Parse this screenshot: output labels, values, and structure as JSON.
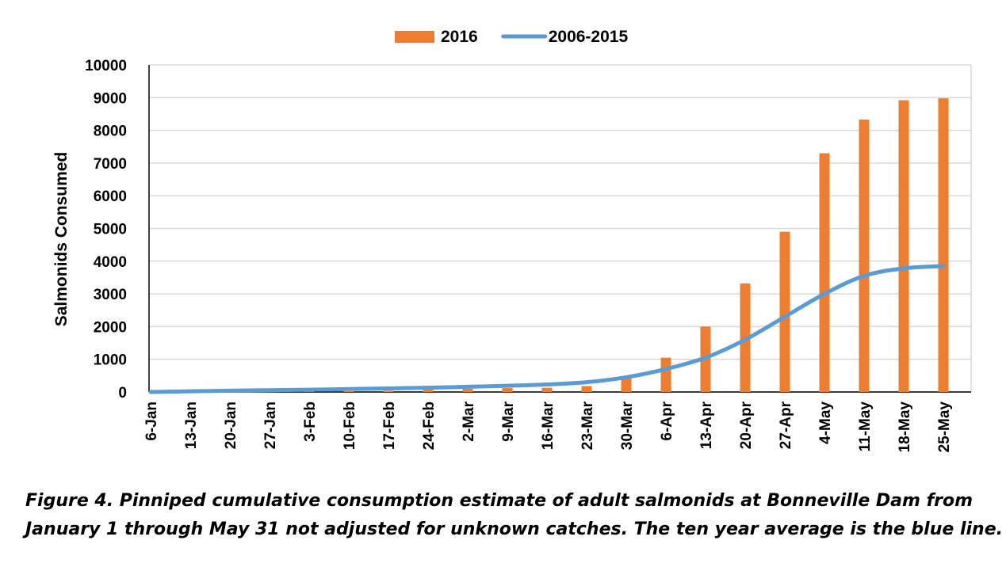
{
  "chart_data": {
    "type": "bar_line",
    "y_label": "Salmonids Consumed",
    "categories": [
      "6-Jan",
      "13-Jan",
      "20-Jan",
      "27-Jan",
      "3-Feb",
      "10-Feb",
      "17-Feb",
      "24-Feb",
      "2-Mar",
      "9-Mar",
      "16-Mar",
      "23-Mar",
      "30-Mar",
      "6-Apr",
      "13-Apr",
      "20-Apr",
      "27-Apr",
      "4-May",
      "11-May",
      "18-May",
      "25-May"
    ],
    "series": [
      {
        "name": "2016",
        "type": "bar",
        "color": "#ed7d31",
        "values": [
          0,
          0,
          0,
          5,
          10,
          20,
          40,
          70,
          100,
          120,
          130,
          180,
          420,
          1050,
          2000,
          3320,
          4900,
          7300,
          8330,
          8920,
          8980
        ]
      },
      {
        "name": "2006-2015",
        "type": "line",
        "color": "#5b9bd5",
        "values": [
          0,
          20,
          40,
          55,
          70,
          90,
          110,
          130,
          160,
          190,
          230,
          300,
          450,
          700,
          1050,
          1600,
          2300,
          3000,
          3550,
          3780,
          3850
        ]
      }
    ],
    "ylim": [
      0,
      10000
    ],
    "yticks": [
      0,
      1000,
      2000,
      3000,
      4000,
      5000,
      6000,
      7000,
      8000,
      9000,
      10000
    ],
    "grid": true,
    "legend": "top",
    "caption": [
      "Figure 4.  Pinniped cumulative consumption estimate of adult salmonids at Bonneville Dam from",
      "January 1 through May 31 not adjusted for unknown catches.  The ten year average is the blue line."
    ]
  }
}
